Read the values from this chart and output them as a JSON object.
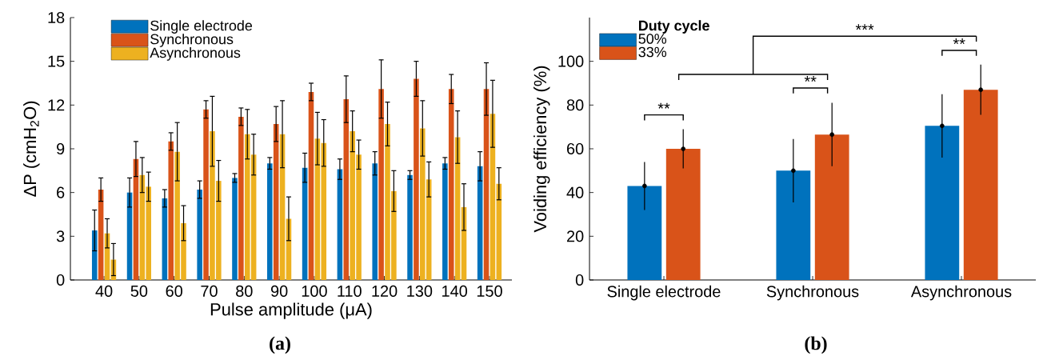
{
  "chart_data": [
    {
      "type": "bar",
      "categories": [
        "40",
        "50",
        "60",
        "70",
        "80",
        "90",
        "100",
        "110",
        "120",
        "130",
        "140",
        "150"
      ],
      "xlabel": "Pulse amplitude (μA)",
      "ylabel": "ΔP (cmH$_{2}$O)",
      "ylim": [
        0,
        18
      ],
      "yticks": [
        0,
        3,
        6,
        9,
        12,
        15,
        18
      ],
      "legend": "top left",
      "annotations": [
        "(a)"
      ],
      "series": [
        {
          "name": "Single electrode",
          "color": "#0072bd",
          "values": [
            3.4,
            6.0,
            5.6,
            6.2,
            7.0,
            8.0,
            7.7,
            7.6,
            8.0,
            7.2,
            8.0,
            7.8
          ],
          "errors": [
            1.4,
            1.0,
            0.6,
            0.6,
            0.3,
            0.4,
            1.0,
            0.7,
            0.8,
            0.3,
            0.4,
            1.0
          ]
        },
        {
          "name": "Synchronous",
          "color": "#d95319",
          "values": [
            6.2,
            8.3,
            9.5,
            11.7,
            11.2,
            10.7,
            12.9,
            12.4,
            13.1,
            13.8,
            13.1,
            13.1
          ],
          "errors": [
            0.8,
            1.2,
            0.6,
            0.6,
            0.6,
            1.2,
            0.6,
            1.6,
            2.0,
            1.2,
            1.0,
            1.8
          ]
        },
        {
          "name": "Asynchronous",
          "color": "#edb120",
          "values": [
            3.2,
            7.2,
            8.8,
            10.2,
            10.0,
            10.0,
            9.7,
            10.2,
            10.7,
            10.4,
            9.8,
            11.4
          ],
          "errors": [
            1.0,
            1.2,
            2.0,
            2.4,
            1.7,
            2.3,
            1.8,
            1.4,
            1.5,
            1.9,
            1.8,
            2.3
          ]
        },
        {
          "color": "#edb120",
          "values": [
            1.4,
            6.4,
            3.9,
            6.8,
            8.6,
            4.2,
            9.4,
            8.6,
            6.1,
            6.9,
            5.0,
            6.6
          ],
          "errors": [
            1.1,
            1.0,
            1.2,
            1.4,
            1.4,
            1.5,
            1.6,
            1.0,
            1.4,
            1.2,
            1.6,
            1.1
          ]
        }
      ]
    },
    {
      "type": "bar",
      "categories": [
        "Single electrode",
        "Synchronous",
        "Asynchronous"
      ],
      "ylabel": "Voiding efficiency (%)",
      "ylim": [
        0,
        120
      ],
      "yticks": [
        0,
        20,
        40,
        60,
        80,
        100
      ],
      "legend": "top left",
      "legend_title": "Duty cycle",
      "marker": "circle",
      "annotations": [
        "**",
        "**",
        "**",
        "***",
        "(b)"
      ],
      "series": [
        {
          "name": "50%",
          "color": "#0072bd",
          "values": [
            43,
            50,
            70.5
          ],
          "errors": [
            11,
            14.5,
            14.5
          ]
        },
        {
          "name": "33%",
          "color": "#d95319",
          "values": [
            60,
            66.5,
            87
          ],
          "errors": [
            9,
            14.5,
            11.5
          ]
        }
      ]
    }
  ]
}
